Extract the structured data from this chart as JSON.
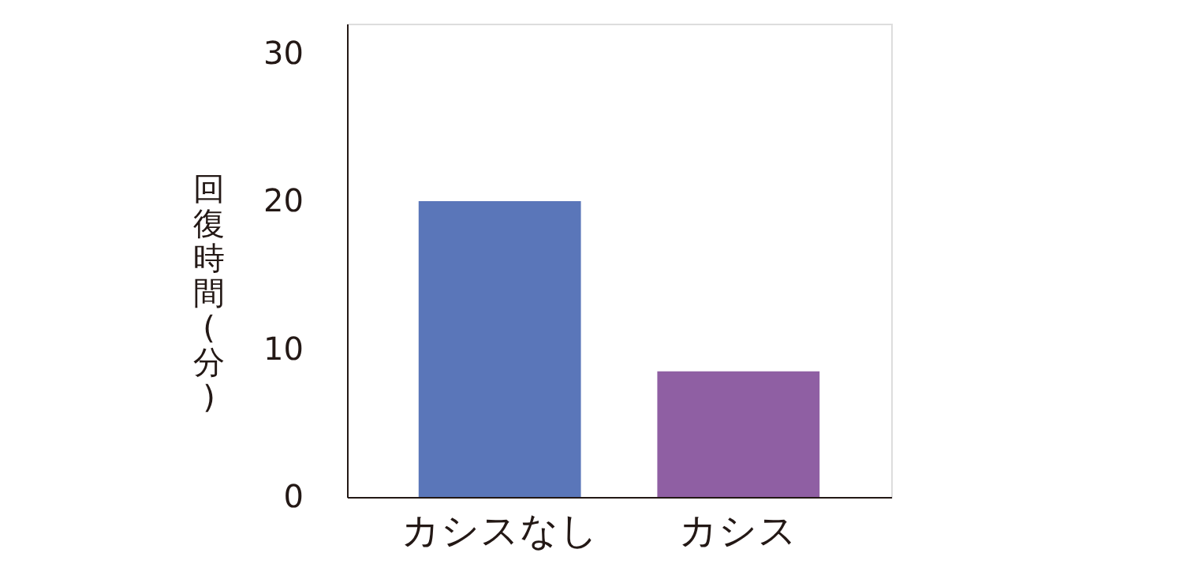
{
  "chart_data": {
    "type": "bar",
    "ylabel": "回復時間(分)",
    "categories": [
      "カシスなし",
      "カシス"
    ],
    "values": [
      20,
      8.5
    ],
    "colors": [
      "#5a76b9",
      "#8f5fa3"
    ],
    "ylim": [
      0,
      32
    ],
    "yticks": [
      0,
      10,
      20,
      30
    ],
    "grid": false,
    "legend": false
  }
}
